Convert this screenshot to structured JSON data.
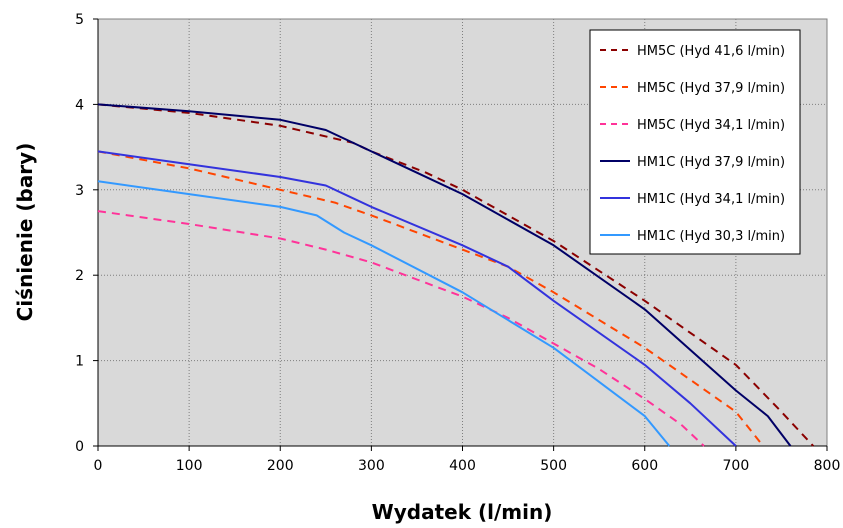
{
  "chart_data": {
    "type": "line",
    "title": "",
    "xlabel": "Wydatek (l/min)",
    "ylabel": "Ciśnienie (bary)",
    "xlim": [
      0,
      800
    ],
    "ylim": [
      0,
      5
    ],
    "xticks": [
      0,
      100,
      200,
      300,
      400,
      500,
      600,
      700,
      800
    ],
    "yticks": [
      0,
      1,
      2,
      3,
      4,
      5
    ],
    "grid": true,
    "background": "#d9d9d9",
    "legend_position": "top-right",
    "series": [
      {
        "name": "HM5C (Hyd 41,6 l/min)",
        "color": "#8b0000",
        "dash": "dashed",
        "x": [
          0,
          100,
          200,
          280,
          300,
          360,
          400,
          500,
          600,
          700,
          750,
          785
        ],
        "y": [
          4.0,
          3.9,
          3.75,
          3.55,
          3.45,
          3.2,
          3.0,
          2.4,
          1.7,
          0.95,
          0.4,
          0.0
        ]
      },
      {
        "name": "HM5C (Hyd 37,9 l/min)",
        "color": "#ff4500",
        "dash": "dashed",
        "x": [
          0,
          100,
          200,
          260,
          300,
          400,
          450,
          500,
          600,
          700,
          730
        ],
        "y": [
          3.45,
          3.25,
          3.0,
          2.85,
          2.7,
          2.3,
          2.1,
          1.8,
          1.15,
          0.4,
          0.0
        ]
      },
      {
        "name": "HM5C (Hyd 34,1 l/min)",
        "color": "#ff3399",
        "dash": "dashed",
        "x": [
          0,
          100,
          200,
          250,
          300,
          350,
          400,
          450,
          500,
          550,
          600,
          640,
          665
        ],
        "y": [
          2.75,
          2.6,
          2.43,
          2.3,
          2.15,
          1.95,
          1.75,
          1.5,
          1.2,
          0.9,
          0.55,
          0.25,
          0.0
        ]
      },
      {
        "name": "HM1C (Hyd 37,9 l/min)",
        "color": "#000066",
        "dash": "solid",
        "x": [
          0,
          100,
          200,
          250,
          300,
          350,
          400,
          500,
          600,
          700,
          735,
          760
        ],
        "y": [
          4.0,
          3.92,
          3.82,
          3.7,
          3.45,
          3.2,
          2.95,
          2.35,
          1.6,
          0.65,
          0.35,
          0.0
        ]
      },
      {
        "name": "HM1C (Hyd 34,1 l/min)",
        "color": "#3333dd",
        "dash": "solid",
        "x": [
          0,
          100,
          200,
          250,
          280,
          300,
          400,
          450,
          500,
          600,
          650,
          700
        ],
        "y": [
          3.45,
          3.3,
          3.15,
          3.05,
          2.9,
          2.8,
          2.35,
          2.1,
          1.7,
          0.95,
          0.5,
          0.0
        ]
      },
      {
        "name": "HM1C (Hyd 30,3 l/min)",
        "color": "#3399ff",
        "dash": "solid",
        "x": [
          0,
          100,
          200,
          240,
          270,
          300,
          400,
          500,
          550,
          600,
          627
        ],
        "y": [
          3.1,
          2.95,
          2.8,
          2.7,
          2.5,
          2.35,
          1.8,
          1.15,
          0.75,
          0.35,
          0.0
        ]
      }
    ]
  }
}
